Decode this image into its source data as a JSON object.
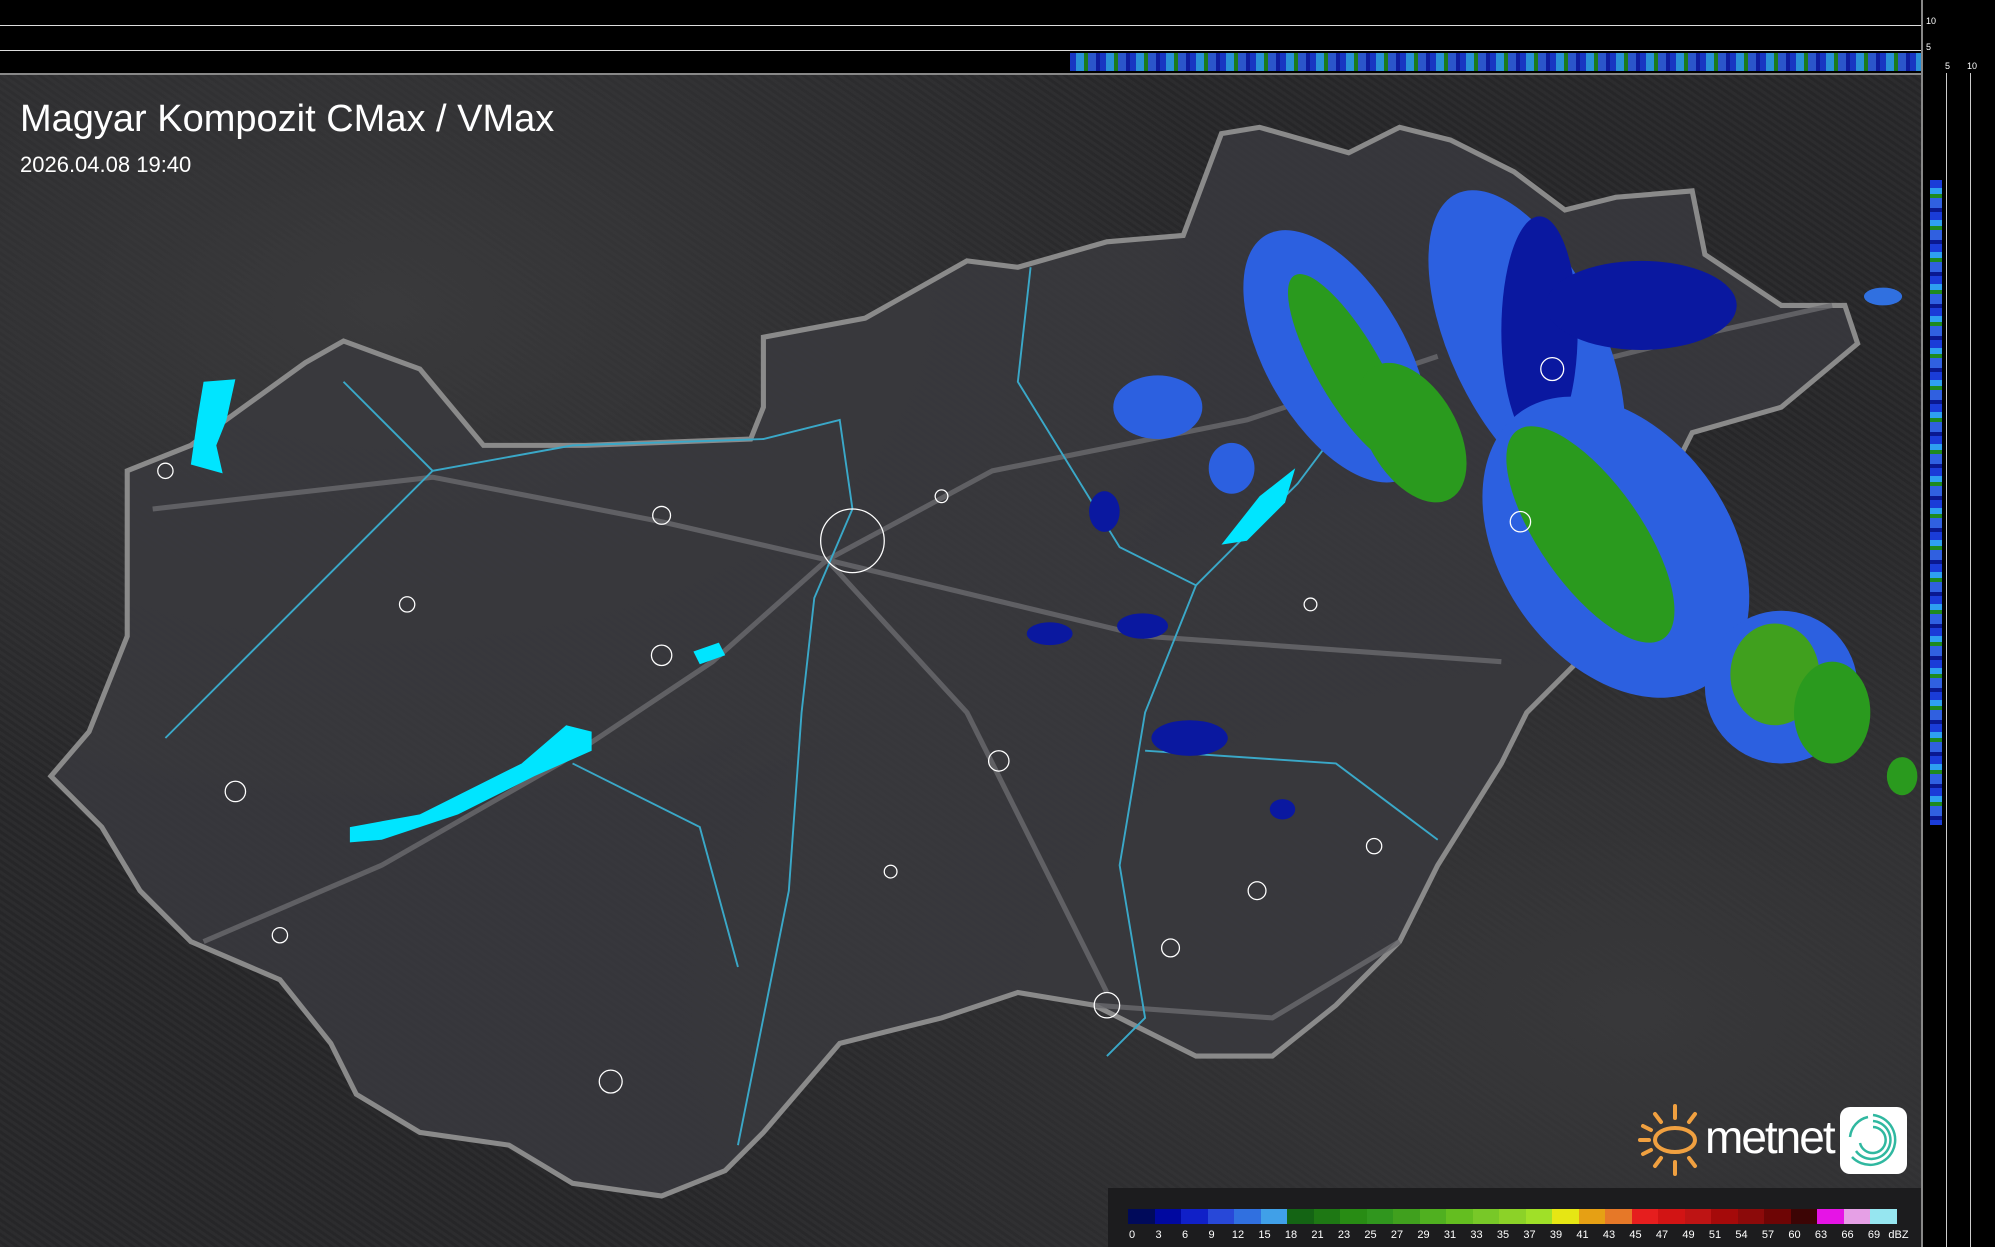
{
  "header": {
    "title": "Magyar Kompozit CMax / VMax",
    "timestamp": "2026.04.08 19:40"
  },
  "profile_axes": {
    "top_right_ticks": [
      "10",
      "5"
    ],
    "right_bottom_ticks": [
      "5",
      "10"
    ]
  },
  "legend": {
    "unit": "dBZ",
    "labels": [
      "0",
      "3",
      "6",
      "9",
      "12",
      "15",
      "18",
      "21",
      "23",
      "25",
      "27",
      "29",
      "31",
      "33",
      "35",
      "37",
      "39",
      "41",
      "43",
      "45",
      "47",
      "49",
      "51",
      "54",
      "57",
      "60",
      "63",
      "66",
      "69"
    ],
    "colors": [
      "#000a5a",
      "#0008a0",
      "#1020c8",
      "#2848d8",
      "#3070e0",
      "#40a0e8",
      "#146414",
      "#1e7814",
      "#288c14",
      "#30961e",
      "#40a01e",
      "#50b020",
      "#64be20",
      "#78c828",
      "#8cd228",
      "#a0e028",
      "#e6e614",
      "#e6a014",
      "#e67828",
      "#e61e1e",
      "#d21414",
      "#be1414",
      "#a50a0a",
      "#8c0a0a",
      "#6e0505",
      "#3c0505",
      "#e614e6",
      "#e6a0e6",
      "#96e6f0"
    ]
  },
  "logo": {
    "text": "metnet",
    "sun_color": "#f0a040",
    "icon_color": "#30b8a0"
  },
  "colors": {
    "lakes": "#00e5ff",
    "rivers": "#3aa8c8",
    "borders": "#8a8a8a",
    "country_fill": "#3a3a3e"
  }
}
